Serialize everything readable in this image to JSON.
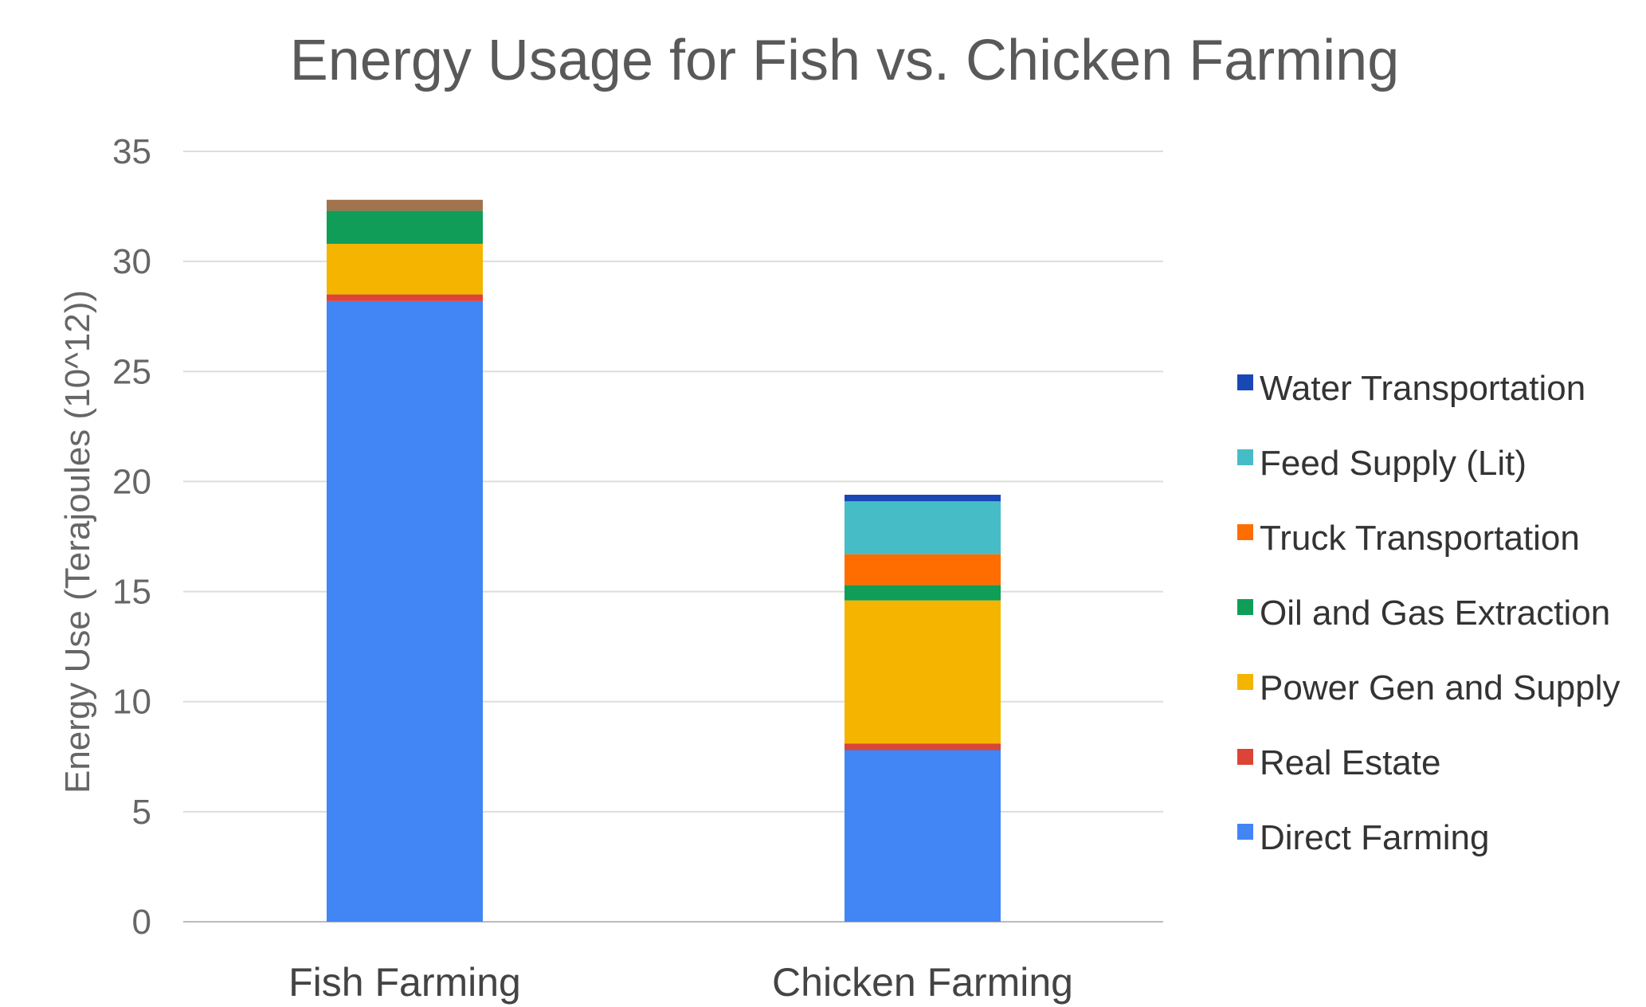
{
  "chart_data": {
    "type": "bar",
    "stacked": true,
    "title": "Energy Usage for Fish vs. Chicken Farming",
    "ylabel": "Energy Use (Terajoules  (10^12))",
    "xlabel": "",
    "ylim": [
      0,
      35
    ],
    "yticks": [
      0,
      5,
      10,
      15,
      20,
      25,
      30,
      35
    ],
    "grid": true,
    "legend_position": "right",
    "categories": [
      "Fish Farming",
      "Chicken Farming"
    ],
    "series": [
      {
        "name": "Direct Farming",
        "color": "#4285f4",
        "values": [
          28.2,
          7.8
        ]
      },
      {
        "name": "Real Estate",
        "color": "#db4437",
        "values": [
          0.3,
          0.3
        ]
      },
      {
        "name": "Power Gen and Supply",
        "color": "#f4b400",
        "values": [
          2.3,
          6.5
        ]
      },
      {
        "name": "Oil and Gas Extraction",
        "color": "#0f9d58",
        "values": [
          1.5,
          0.7
        ]
      },
      {
        "name": "Truck Transportation",
        "color": "#ff6d00",
        "values": [
          0.0,
          1.4
        ]
      },
      {
        "name": "Feed Supply (Lit)",
        "color": "#46bdc6",
        "values": [
          0.0,
          2.4
        ]
      },
      {
        "name": "Water Transportation",
        "color": "#1a47b8",
        "values": [
          0.0,
          0.3
        ]
      },
      {
        "name": "",
        "color": "#a0734d",
        "values": [
          0.5,
          0.0
        ]
      }
    ],
    "legend_order": [
      6,
      5,
      4,
      3,
      2,
      1,
      0
    ]
  }
}
